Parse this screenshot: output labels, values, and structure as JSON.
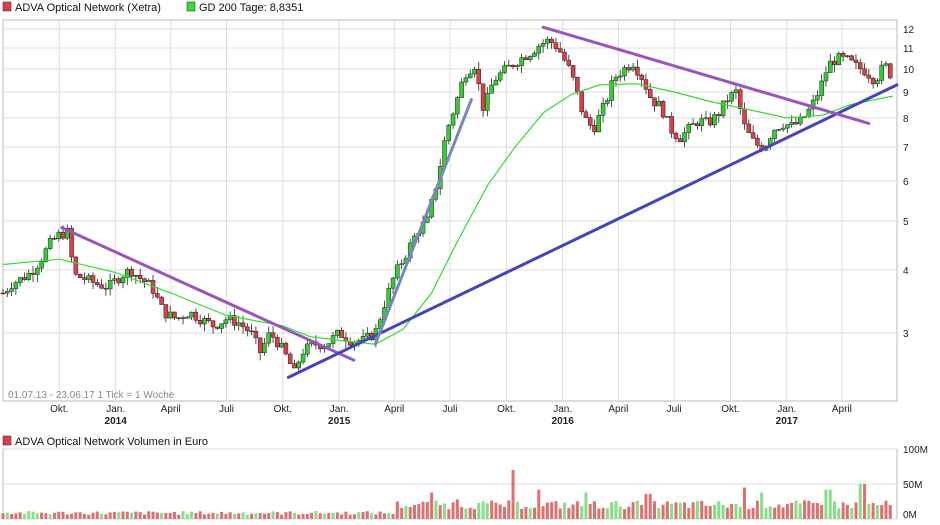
{
  "legend": {
    "price_label": "ADVA Optical Network (Xetra)",
    "ma_label": "GD 200 Tage: 8,8351",
    "volume_label": "ADVA Optical Network Volumen in Euro"
  },
  "range_text": "01.07.13 - 23.06.17   1 Tick = 1 Woche",
  "colors": {
    "up": "#33cc33",
    "down": "#d9404a",
    "ma": "#33dd33",
    "trend_purple": "#9955bb",
    "trend_blue": "#4444bb",
    "trend_steel": "#7788bb",
    "grid": "#dddddd",
    "volume": "#e07070",
    "volume_green": "#88dd88"
  },
  "chart_data": {
    "type": "candlestick",
    "title": "ADVA Optical Network (Xetra)",
    "period": "01.07.13 - 23.06.17",
    "y_scale": "log",
    "ylim": [
      2.2,
      12.5
    ],
    "y_ticks": [
      3,
      4,
      5,
      6,
      7,
      8,
      9,
      10,
      11,
      12
    ],
    "x_ticks": [
      {
        "label": "Okt.",
        "date": "2013-10-01"
      },
      {
        "label": "Jan.",
        "date": "2014-01-01"
      },
      {
        "label": "April",
        "date": "2014-04-01"
      },
      {
        "label": "Juli",
        "date": "2014-07-01"
      },
      {
        "label": "Okt.",
        "date": "2014-10-01"
      },
      {
        "label": "Jan.",
        "date": "2015-01-01"
      },
      {
        "label": "April",
        "date": "2015-04-01"
      },
      {
        "label": "Juli",
        "date": "2015-07-01"
      },
      {
        "label": "Okt.",
        "date": "2015-10-01"
      },
      {
        "label": "Jan.",
        "date": "2016-01-01"
      },
      {
        "label": "April",
        "date": "2016-04-01"
      },
      {
        "label": "Juli",
        "date": "2016-07-01"
      },
      {
        "label": "Okt.",
        "date": "2016-10-01"
      },
      {
        "label": "Jan.",
        "date": "2017-01-01"
      },
      {
        "label": "April",
        "date": "2017-04-01"
      }
    ],
    "year_labels": [
      {
        "label": "2014",
        "date": "2014-01-01"
      },
      {
        "label": "2015",
        "date": "2015-01-01"
      },
      {
        "label": "2016",
        "date": "2016-01-01"
      },
      {
        "label": "2017",
        "date": "2017-01-01"
      }
    ],
    "close_series": [
      [
        "2013-07-01",
        3.6
      ],
      [
        "2013-07-15",
        3.75
      ],
      [
        "2013-08-01",
        3.85
      ],
      [
        "2013-08-15",
        3.95
      ],
      [
        "2013-09-01",
        4.2
      ],
      [
        "2013-09-15",
        4.5
      ],
      [
        "2013-10-01",
        4.7
      ],
      [
        "2013-10-15",
        4.75
      ],
      [
        "2013-10-25",
        3.9
      ],
      [
        "2013-11-10",
        3.85
      ],
      [
        "2013-12-01",
        3.75
      ],
      [
        "2013-12-20",
        3.7
      ],
      [
        "2014-01-10",
        3.9
      ],
      [
        "2014-01-25",
        4.0
      ],
      [
        "2014-02-10",
        3.85
      ],
      [
        "2014-03-01",
        3.7
      ],
      [
        "2014-03-20",
        3.3
      ],
      [
        "2014-04-10",
        3.2
      ],
      [
        "2014-05-01",
        3.3
      ],
      [
        "2014-05-20",
        3.2
      ],
      [
        "2014-06-10",
        3.1
      ],
      [
        "2014-07-01",
        3.2
      ],
      [
        "2014-07-20",
        3.15
      ],
      [
        "2014-08-10",
        3.0
      ],
      [
        "2014-08-25",
        2.75
      ],
      [
        "2014-09-10",
        3.0
      ],
      [
        "2014-09-25",
        2.85
      ],
      [
        "2014-10-10",
        2.65
      ],
      [
        "2014-10-20",
        2.5
      ],
      [
        "2014-11-01",
        2.75
      ],
      [
        "2014-11-20",
        2.85
      ],
      [
        "2014-12-10",
        2.85
      ],
      [
        "2015-01-01",
        3.0
      ],
      [
        "2015-01-20",
        2.9
      ],
      [
        "2015-02-10",
        2.9
      ],
      [
        "2015-03-01",
        3.0
      ],
      [
        "2015-03-15",
        3.4
      ],
      [
        "2015-04-01",
        3.9
      ],
      [
        "2015-04-20",
        4.3
      ],
      [
        "2015-05-10",
        4.8
      ],
      [
        "2015-05-25",
        5.0
      ],
      [
        "2015-06-10",
        6.0
      ],
      [
        "2015-06-25",
        7.5
      ],
      [
        "2015-07-10",
        8.5
      ],
      [
        "2015-07-25",
        9.8
      ],
      [
        "2015-08-10",
        10.2
      ],
      [
        "2015-08-25",
        8.3
      ],
      [
        "2015-09-10",
        9.5
      ],
      [
        "2015-10-01",
        10.0
      ],
      [
        "2015-10-20",
        10.4
      ],
      [
        "2015-11-10",
        10.8
      ],
      [
        "2015-11-25",
        11.2
      ],
      [
        "2015-12-10",
        11.4
      ],
      [
        "2015-12-25",
        11.0
      ],
      [
        "2016-01-15",
        9.8
      ],
      [
        "2016-02-05",
        8.0
      ],
      [
        "2016-02-20",
        7.6
      ],
      [
        "2016-03-10",
        8.5
      ],
      [
        "2016-03-25",
        9.6
      ],
      [
        "2016-04-10",
        10.0
      ],
      [
        "2016-04-25",
        10.3
      ],
      [
        "2016-05-10",
        9.6
      ],
      [
        "2016-05-25",
        8.7
      ],
      [
        "2016-06-10",
        8.4
      ],
      [
        "2016-06-25",
        7.6
      ],
      [
        "2016-07-10",
        7.3
      ],
      [
        "2016-07-25",
        7.6
      ],
      [
        "2016-08-10",
        7.9
      ],
      [
        "2016-08-25",
        7.8
      ],
      [
        "2016-09-10",
        8.1
      ],
      [
        "2016-09-25",
        8.7
      ],
      [
        "2016-10-10",
        9.0
      ],
      [
        "2016-10-25",
        7.6
      ],
      [
        "2016-11-10",
        7.1
      ],
      [
        "2016-11-25",
        7.0
      ],
      [
        "2016-12-10",
        7.6
      ],
      [
        "2016-12-25",
        7.8
      ],
      [
        "2017-01-10",
        7.7
      ],
      [
        "2017-01-25",
        7.9
      ],
      [
        "2017-02-10",
        8.4
      ],
      [
        "2017-02-25",
        9.2
      ],
      [
        "2017-03-10",
        10.2
      ],
      [
        "2017-03-25",
        10.5
      ],
      [
        "2017-04-10",
        10.4
      ],
      [
        "2017-04-25",
        10.1
      ],
      [
        "2017-05-10",
        9.9
      ],
      [
        "2017-05-25",
        9.5
      ],
      [
        "2017-06-10",
        10.2
      ],
      [
        "2017-06-23",
        9.6
      ]
    ],
    "ma200_series": [
      [
        "2013-07-01",
        4.1
      ],
      [
        "2013-10-01",
        4.2
      ],
      [
        "2014-01-01",
        3.95
      ],
      [
        "2014-04-01",
        3.6
      ],
      [
        "2014-07-01",
        3.25
      ],
      [
        "2014-10-01",
        3.1
      ],
      [
        "2014-11-15",
        2.95
      ],
      [
        "2015-01-01",
        2.9
      ],
      [
        "2015-03-01",
        2.85
      ],
      [
        "2015-04-15",
        3.05
      ],
      [
        "2015-06-01",
        3.6
      ],
      [
        "2015-07-15",
        4.6
      ],
      [
        "2015-09-01",
        5.9
      ],
      [
        "2015-10-15",
        7.0
      ],
      [
        "2015-12-01",
        8.2
      ],
      [
        "2016-01-15",
        8.9
      ],
      [
        "2016-03-01",
        9.3
      ],
      [
        "2016-05-01",
        9.35
      ],
      [
        "2016-07-01",
        9.0
      ],
      [
        "2016-09-01",
        8.6
      ],
      [
        "2016-11-01",
        8.3
      ],
      [
        "2017-01-01",
        8.0
      ],
      [
        "2017-03-01",
        8.1
      ],
      [
        "2017-04-15",
        8.5
      ],
      [
        "2017-06-23",
        8.8351
      ]
    ],
    "trendlines": [
      {
        "color": "trend_purple",
        "from": [
          "2013-10-05",
          4.85
        ],
        "to": [
          "2015-01-25",
          2.65
        ]
      },
      {
        "color": "trend_blue",
        "from": [
          "2014-10-10",
          2.45
        ],
        "to": [
          "2017-06-30",
          9.3
        ]
      },
      {
        "color": "trend_steel",
        "from": [
          "2015-03-01",
          2.85
        ],
        "to": [
          "2015-08-05",
          8.7
        ]
      },
      {
        "color": "trend_purple",
        "from": [
          "2015-11-30",
          12.1
        ],
        "to": [
          "2017-05-15",
          7.8
        ]
      }
    ],
    "volume": {
      "label": "ADVA Optical Network Volumen in Euro",
      "y_ticks": [
        "100M",
        "50M",
        "0M"
      ],
      "ylim": [
        0,
        100
      ],
      "peaks": [
        [
          "2015-06-01",
          38
        ],
        [
          "2015-07-15",
          28
        ],
        [
          "2015-10-10",
          70
        ],
        [
          "2015-11-25",
          42
        ],
        [
          "2016-02-10",
          38
        ],
        [
          "2016-05-20",
          36
        ],
        [
          "2016-10-25",
          45
        ],
        [
          "2016-11-20",
          38
        ],
        [
          "2017-03-10",
          42
        ],
        [
          "2017-05-05",
          50
        ]
      ]
    }
  }
}
